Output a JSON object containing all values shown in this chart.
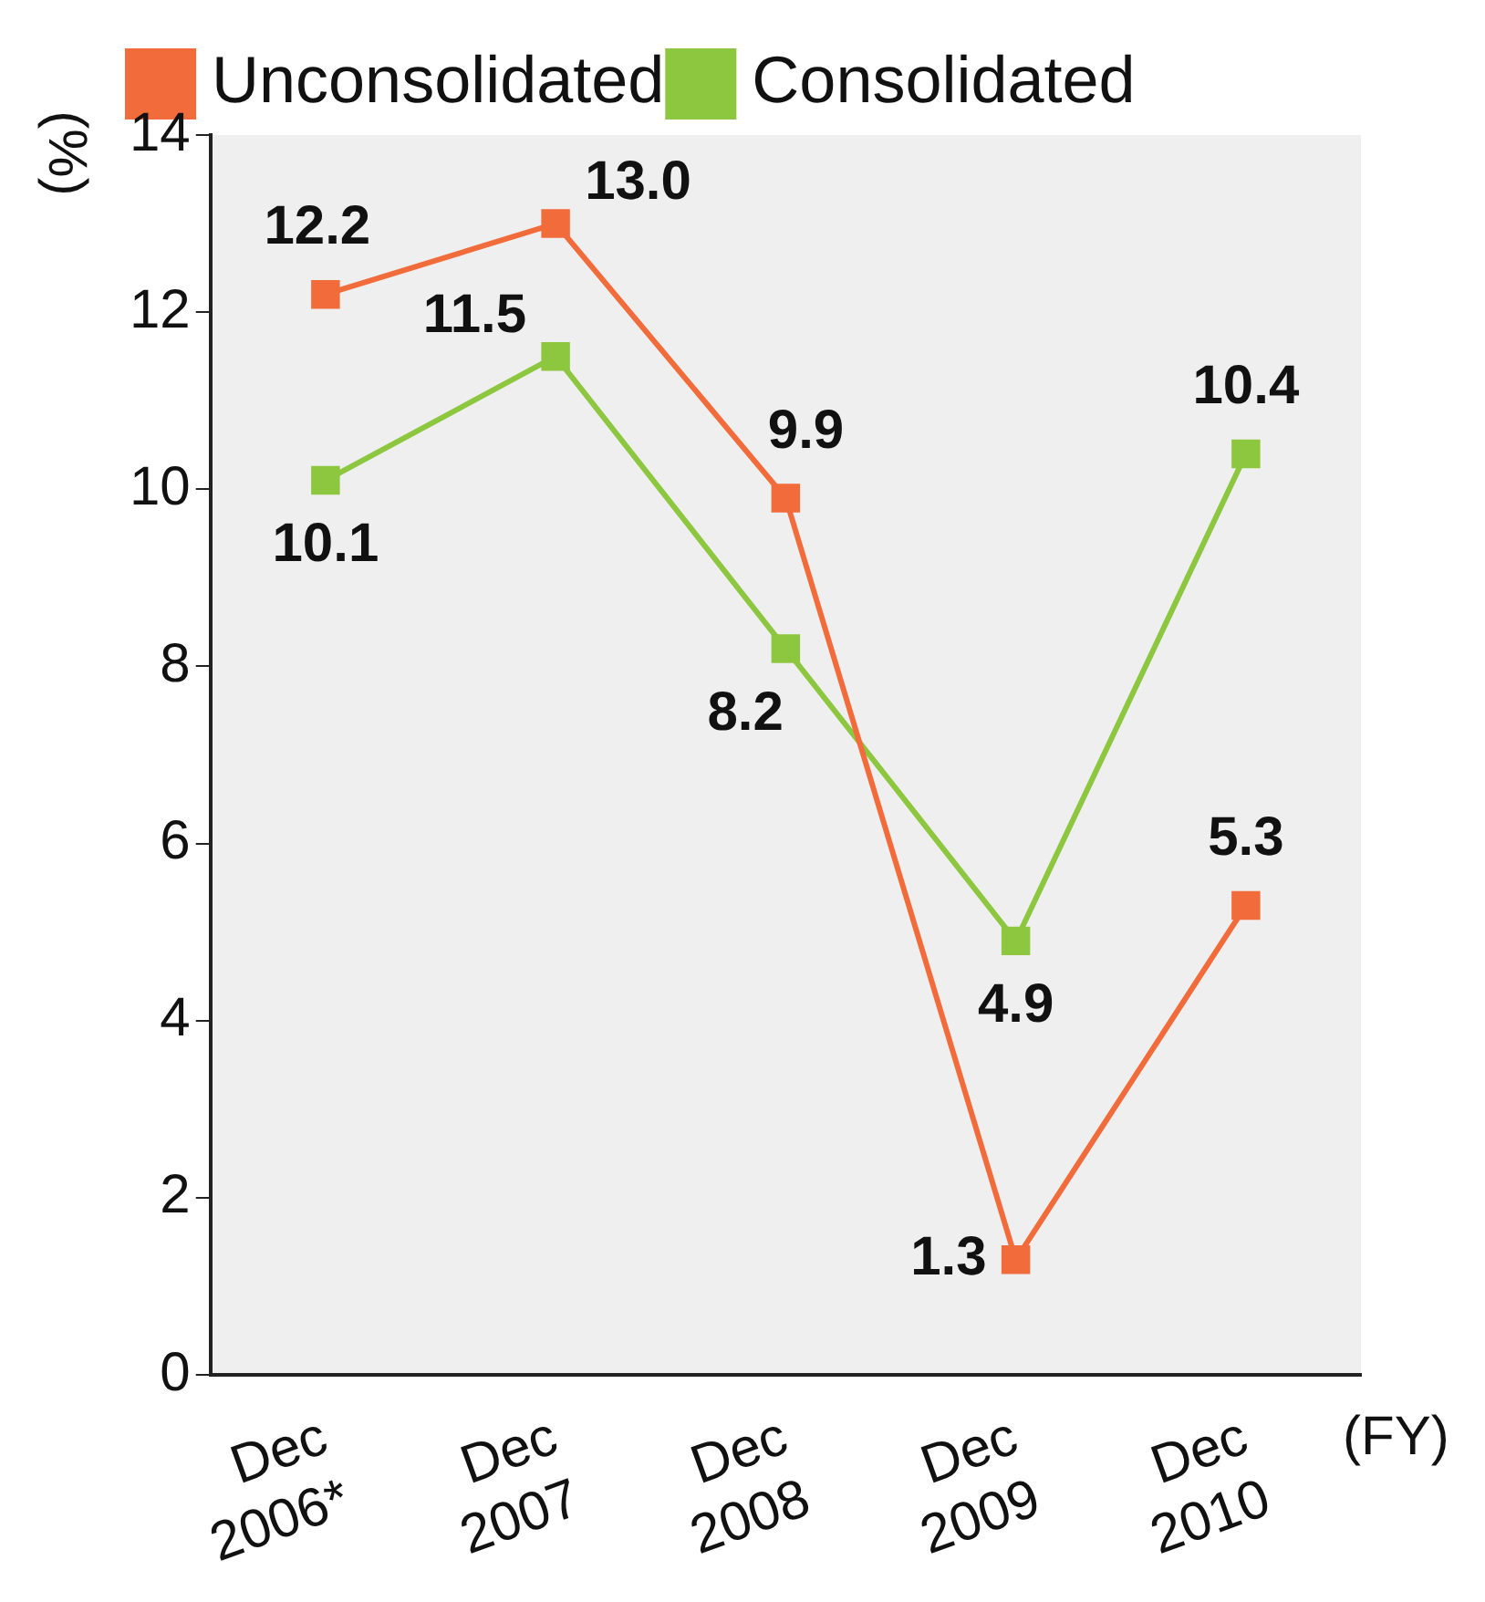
{
  "chart_data": {
    "type": "line",
    "ylabel": "(%)",
    "xlabel": "(FY)",
    "categories": [
      "Dec 2006*",
      "Dec 2007",
      "Dec 2008",
      "Dec 2009",
      "Dec 2010"
    ],
    "series": [
      {
        "name": "Unconsolidated",
        "color": "#f26b3a",
        "values": [
          12.2,
          13.0,
          9.9,
          1.3,
          5.3
        ],
        "value_labels": [
          "12.2",
          "13.0",
          "9.9",
          "1.3",
          "5.3"
        ]
      },
      {
        "name": "Consolidated",
        "color": "#8dc63f",
        "values": [
          10.1,
          11.5,
          8.2,
          4.9,
          10.4
        ],
        "value_labels": [
          "10.1",
          "11.5",
          "8.2",
          "4.9",
          "10.4"
        ]
      }
    ],
    "ylim": [
      0,
      14
    ],
    "yticks": [
      0,
      2,
      4,
      6,
      8,
      10,
      12,
      14
    ],
    "grid": false,
    "legend": "top left",
    "marker": "square",
    "line_style": "solid"
  }
}
